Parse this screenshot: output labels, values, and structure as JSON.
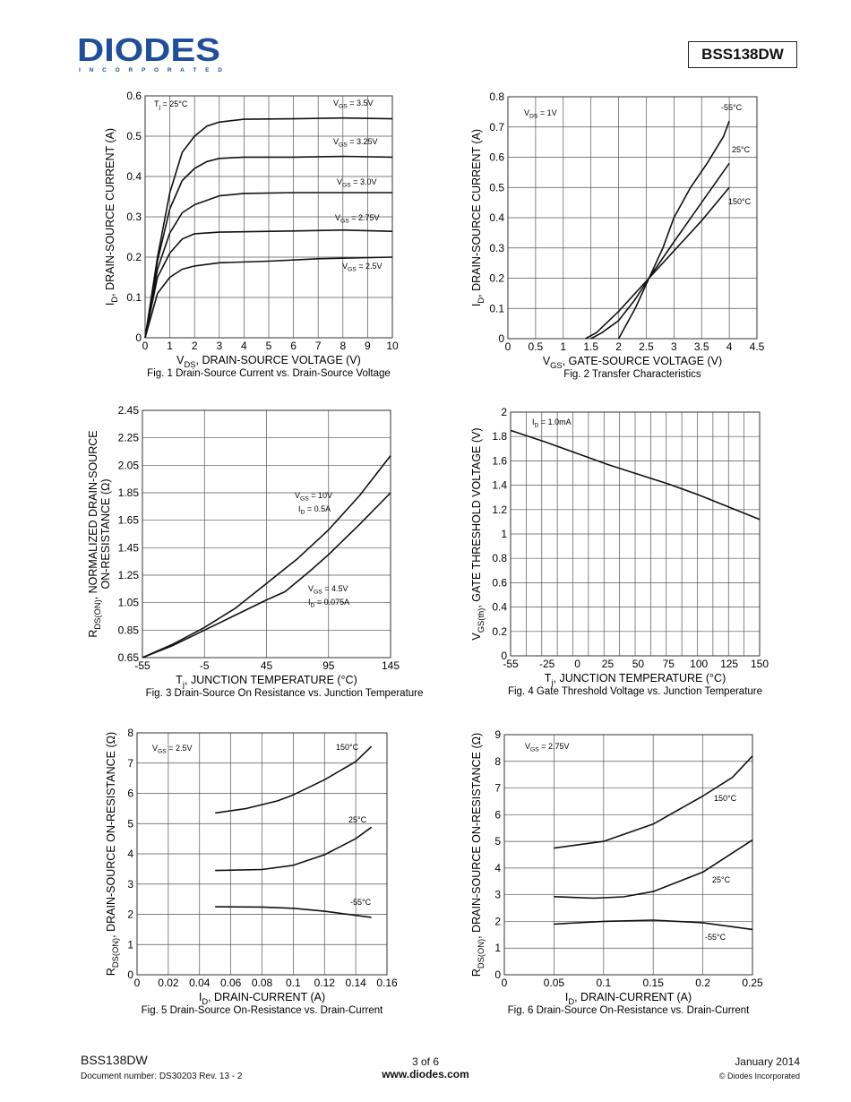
{
  "header": {
    "logo_text": "DIODES",
    "logo_subtext": "INCORPORATED",
    "part_number": "BSS138DW",
    "logo_color": "#1f4e9a"
  },
  "footer": {
    "part_number": "BSS138DW",
    "document_number": "Document number: DS30203 Rev. 13 - 2",
    "page": "3 of 6",
    "website": "www.diodes.com",
    "date": "January 2014",
    "copyright": "© Diodes Incorporated"
  },
  "chart_data": [
    {
      "type": "line",
      "title": "Fig. 1  Drain-Source Current vs. Drain-Source Voltage",
      "xlabel": "V_{DS}, DRAIN-SOURCE VOLTAGE (V)",
      "ylabel": [
        "I_{D}, DRAIN-SOURCE CURRENT (A)"
      ],
      "xlim": [
        0,
        10
      ],
      "ylim": [
        0,
        0.6
      ],
      "xticks": [
        "0",
        "1",
        "2",
        "3",
        "4",
        "5",
        "6",
        "7",
        "8",
        "9",
        "10"
      ],
      "yticks": [
        "0",
        "0.1",
        "0.2",
        "0.3",
        "0.4",
        "0.5",
        "0.6"
      ],
      "grid": true,
      "annotations": [
        "T_{j} = 25°C"
      ],
      "series": [
        {
          "name": "V_{GS} = 3.5V",
          "x": [
            0,
            0.5,
            1,
            1.5,
            2,
            2.5,
            3,
            4,
            6,
            8,
            10
          ],
          "y": [
            0,
            0.2,
            0.36,
            0.46,
            0.5,
            0.525,
            0.535,
            0.542,
            0.543,
            0.545,
            0.543
          ]
        },
        {
          "name": "V_{GS} = 3.25V",
          "x": [
            0,
            0.5,
            1,
            1.5,
            2,
            2.5,
            3,
            4,
            6,
            8,
            10
          ],
          "y": [
            0,
            0.19,
            0.32,
            0.39,
            0.42,
            0.437,
            0.445,
            0.448,
            0.448,
            0.45,
            0.448
          ]
        },
        {
          "name": "V_{GS} = 3.0V",
          "x": [
            0,
            0.5,
            1,
            1.5,
            2,
            3,
            4,
            6,
            8,
            10
          ],
          "y": [
            0,
            0.17,
            0.26,
            0.31,
            0.33,
            0.352,
            0.358,
            0.36,
            0.36,
            0.36
          ]
        },
        {
          "name": "V_{GS} = 2.75V",
          "x": [
            0,
            0.5,
            1,
            1.5,
            2,
            3,
            6,
            8,
            10
          ],
          "y": [
            0,
            0.15,
            0.21,
            0.245,
            0.258,
            0.262,
            0.265,
            0.267,
            0.264
          ]
        },
        {
          "name": "V_{GS} = 2.5V",
          "x": [
            0,
            0.5,
            1,
            1.5,
            2,
            3,
            5,
            7,
            10
          ],
          "y": [
            0,
            0.11,
            0.15,
            0.17,
            0.178,
            0.186,
            0.19,
            0.196,
            0.2
          ]
        }
      ]
    },
    {
      "type": "line",
      "title": "Fig. 2  Transfer Characteristics",
      "xlabel": "V_{GS}, GATE-SOURCE VOLTAGE (V)",
      "ylabel": [
        "I_{D}, DRAIN-SOURCE CURRENT (A)"
      ],
      "xlim": [
        0,
        4.5
      ],
      "ylim": [
        0,
        0.8
      ],
      "xticks": [
        "0",
        "0.5",
        "1",
        "1.5",
        "2",
        "2.5",
        "3",
        "3.5",
        "4",
        "4.5"
      ],
      "yticks": [
        "0",
        "0.1",
        "0.2",
        "0.3",
        "0.4",
        "0.5",
        "0.6",
        "0.7",
        "0.8"
      ],
      "grid": true,
      "annotations": [
        "V_{DS} = 1V"
      ],
      "series": [
        {
          "name": "-55°C",
          "x": [
            2,
            2.3,
            2.55,
            2.8,
            3,
            3.3,
            3.6,
            3.9,
            4
          ],
          "y": [
            0,
            0.1,
            0.2,
            0.3,
            0.4,
            0.5,
            0.58,
            0.67,
            0.72
          ]
        },
        {
          "name": "25°C",
          "x": [
            1.5,
            1.7,
            2,
            2.3,
            2.55,
            3,
            3.5,
            4
          ],
          "y": [
            0,
            0.02,
            0.06,
            0.13,
            0.2,
            0.32,
            0.45,
            0.58
          ]
        },
        {
          "name": "150°C",
          "x": [
            1.4,
            1.6,
            2,
            2.55,
            3,
            3.5,
            4
          ],
          "y": [
            0,
            0.02,
            0.09,
            0.2,
            0.29,
            0.39,
            0.5
          ]
        }
      ]
    },
    {
      "type": "line",
      "title": "Fig. 3  Drain-Source On Resistance vs. Junction Temperature",
      "xlabel": "T_{j}, JUNCTION TEMPERATURE (°C)",
      "ylabel": [
        "R_{DS(ON)}, NORMALIZED DRAIN-SOURCE",
        "ON-RESISTANCE (Ω)"
      ],
      "xlim": [
        -55,
        145
      ],
      "ylim": [
        0.65,
        2.45
      ],
      "xticks": [
        "-55",
        "-5",
        "45",
        "95",
        "145"
      ],
      "yticks": [
        "0.65",
        "0.85",
        "1.05",
        "1.25",
        "1.45",
        "1.65",
        "1.85",
        "2.05",
        "2.25",
        "2.45"
      ],
      "grid": true,
      "annotations": [],
      "series": [
        {
          "name": "V_{GS} = 10V",
          "label2": "I_{D} = 0.5A",
          "x": [
            -55,
            -30,
            -5,
            20,
            45,
            70,
            95,
            120,
            145
          ],
          "y": [
            0.65,
            0.75,
            0.87,
            1.01,
            1.19,
            1.37,
            1.58,
            1.83,
            2.12
          ]
        },
        {
          "name": "V_{GS} = 4.5V",
          "label2": "I_{D} = 0.075A",
          "x": [
            -55,
            -30,
            -5,
            20,
            45,
            60,
            80,
            95,
            120,
            145
          ],
          "y": [
            0.65,
            0.74,
            0.85,
            0.96,
            1.07,
            1.13,
            1.28,
            1.4,
            1.62,
            1.85
          ]
        }
      ]
    },
    {
      "type": "line",
      "title": "Fig. 4  Gate Threshold Voltage vs. Junction Temperature",
      "xlabel": "T_{j}, JUNCTION TEMPERATURE (°C)",
      "ylabel": [
        "V_{GS(th)}, GATE THRESHOLD VOLTAGE (V)"
      ],
      "xlim": [
        -55,
        150
      ],
      "ylim": [
        0,
        2
      ],
      "xticks": [
        "-55",
        "-25",
        "0",
        "25",
        "50",
        "75",
        "100",
        "125",
        "150"
      ],
      "yticks": [
        "0",
        "0.2",
        "0.4",
        "0.6",
        "0.8",
        "1",
        "1.2",
        "1.4",
        "1.6",
        "1.8",
        "2"
      ],
      "grid": true,
      "annotations": [
        "I_{D} = 1.0mA"
      ],
      "series": [
        {
          "name": "",
          "x": [
            -55,
            -25,
            0,
            25,
            50,
            75,
            100,
            125,
            150
          ],
          "y": [
            1.85,
            1.75,
            1.66,
            1.57,
            1.49,
            1.41,
            1.32,
            1.22,
            1.12
          ]
        }
      ]
    },
    {
      "type": "line",
      "title": "Fig. 5  Drain-Source On-Resistance vs. Drain-Current",
      "xlabel": "I_{D}, DRAIN-CURRENT (A)",
      "ylabel": [
        "R_{DS(ON)}, DRAIN-SOURCE ON-RESISTANCE (Ω)"
      ],
      "xlim": [
        0,
        0.16
      ],
      "ylim": [
        0,
        8
      ],
      "xticks": [
        "0",
        "0.02",
        "0.04",
        "0.06",
        "0.08",
        "0.1",
        "0.12",
        "0.14",
        "0.16"
      ],
      "yticks": [
        "0",
        "1",
        "2",
        "3",
        "4",
        "5",
        "6",
        "7",
        "8"
      ],
      "grid": true,
      "annotations": [
        "V_{GS} = 2.5V"
      ],
      "series": [
        {
          "name": "150°C",
          "x": [
            0.05,
            0.07,
            0.09,
            0.1,
            0.12,
            0.14,
            0.15
          ],
          "y": [
            5.35,
            5.5,
            5.75,
            5.95,
            6.45,
            7.05,
            7.55
          ]
        },
        {
          "name": "25°C",
          "x": [
            0.05,
            0.08,
            0.1,
            0.12,
            0.14,
            0.15
          ],
          "y": [
            3.45,
            3.48,
            3.62,
            3.97,
            4.5,
            4.88
          ]
        },
        {
          "name": "-55°C",
          "x": [
            0.05,
            0.08,
            0.1,
            0.12,
            0.15
          ],
          "y": [
            2.25,
            2.24,
            2.2,
            2.1,
            1.9
          ]
        }
      ]
    },
    {
      "type": "line",
      "title": "Fig. 6  Drain-Source On-Resistance vs. Drain-Current",
      "xlabel": "I_{D}, DRAIN-CURRENT (A)",
      "ylabel": [
        "R_{DS(ON)}, DRAIN-SOURCE ON-RESISTANCE (Ω)"
      ],
      "xlim": [
        0,
        0.25
      ],
      "ylim": [
        0,
        9
      ],
      "xticks": [
        "0",
        "0.05",
        "0.1",
        "0.15",
        "0.2",
        "0.25"
      ],
      "yticks": [
        "0",
        "1",
        "2",
        "3",
        "4",
        "5",
        "6",
        "7",
        "8",
        "9"
      ],
      "grid": true,
      "annotations": [
        "V_{GS} = 2.75V"
      ],
      "series": [
        {
          "name": "150°C",
          "x": [
            0.05,
            0.1,
            0.15,
            0.2,
            0.23,
            0.25
          ],
          "y": [
            4.75,
            5.0,
            5.65,
            6.7,
            7.4,
            8.2
          ]
        },
        {
          "name": "25°C",
          "x": [
            0.05,
            0.09,
            0.12,
            0.15,
            0.2,
            0.25
          ],
          "y": [
            2.93,
            2.87,
            2.92,
            3.12,
            3.85,
            5.05
          ]
        },
        {
          "name": "-55°C",
          "x": [
            0.05,
            0.1,
            0.15,
            0.2,
            0.25
          ],
          "y": [
            1.9,
            2.0,
            2.05,
            1.95,
            1.7
          ]
        }
      ]
    }
  ]
}
